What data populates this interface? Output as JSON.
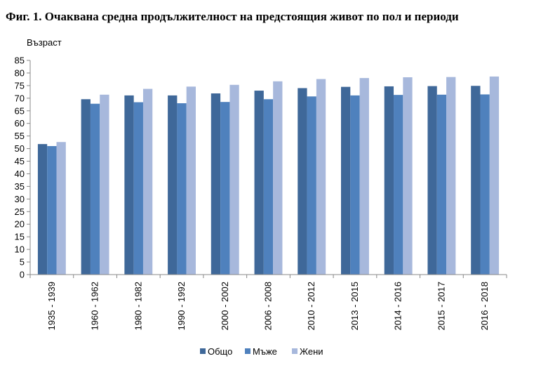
{
  "page": {
    "title": "Фиг. 1. Очаквана средна продължителност на предстоящия живот по пол и периоди"
  },
  "chart_data": {
    "type": "bar",
    "title": "",
    "xlabel": "",
    "ylabel": "Възраст",
    "ylim": [
      0,
      85
    ],
    "ytick_step": 5,
    "grid": false,
    "legend_position": "bottom",
    "categories": [
      "1935 - 1939",
      "1960 - 1962",
      "1980 - 1982",
      "1990 - 1992",
      "2000 - 2002",
      "2006 - 2008",
      "2010 - 2012",
      "2013 - 2015",
      "2014 - 2016",
      "2015 - 2017",
      "2016 - 2018"
    ],
    "series": [
      {
        "name": "Общо",
        "color": "#3f6899",
        "values": [
          51.8,
          69.6,
          71.1,
          71.1,
          71.9,
          73.0,
          74.0,
          74.5,
          74.7,
          74.8,
          74.9
        ]
      },
      {
        "name": "Мъже",
        "color": "#4f81bd",
        "values": [
          51.0,
          67.8,
          68.4,
          68.0,
          68.5,
          69.6,
          70.7,
          71.1,
          71.3,
          71.4,
          71.5
        ]
      },
      {
        "name": "Жени",
        "color": "#a7b8dc",
        "values": [
          52.6,
          71.4,
          73.7,
          74.6,
          75.3,
          76.7,
          77.6,
          78.0,
          78.3,
          78.4,
          78.6
        ]
      }
    ]
  }
}
